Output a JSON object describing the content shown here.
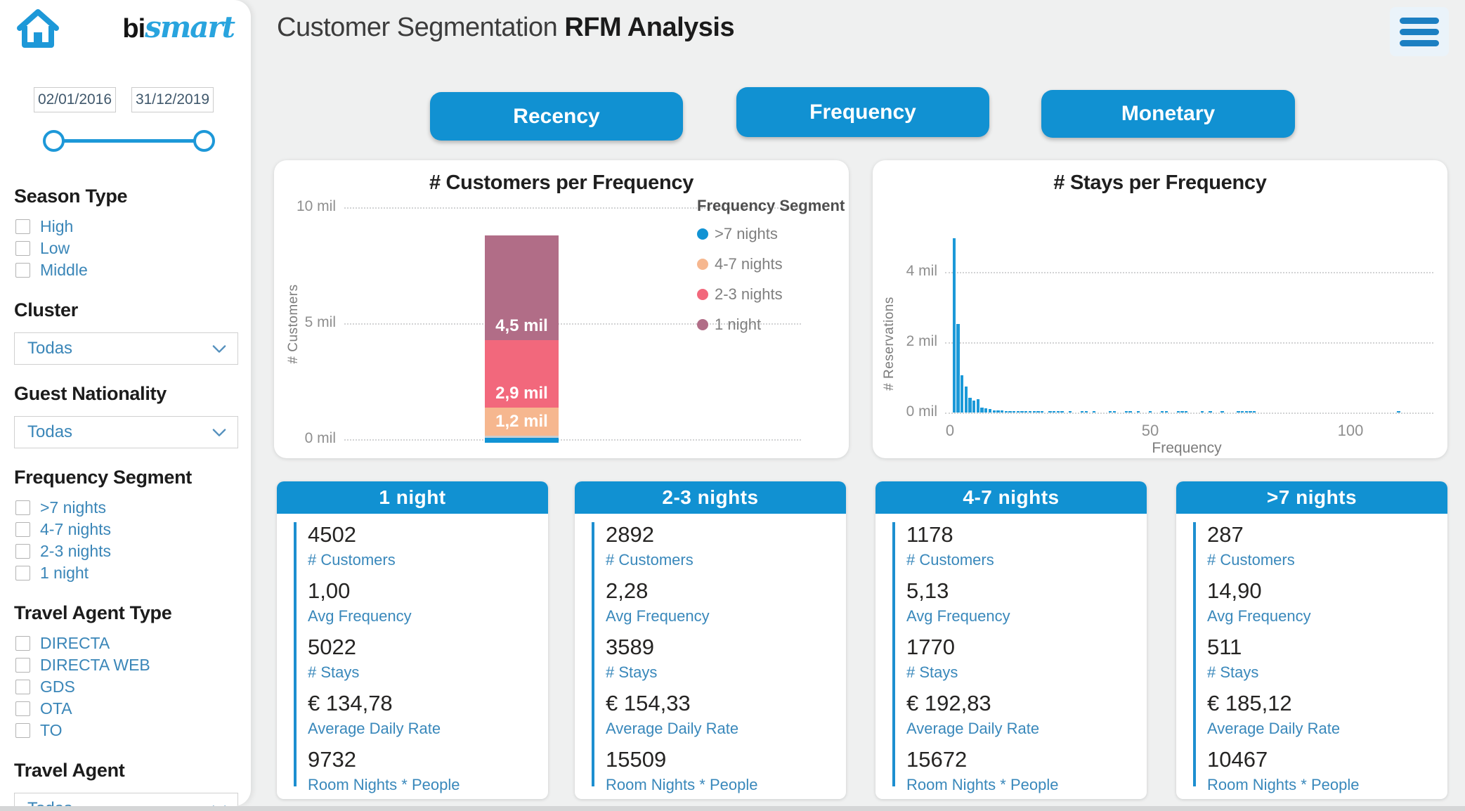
{
  "brand": {
    "bi": "bi",
    "smart": "smart"
  },
  "header": {
    "title_light": "Customer Segmentation",
    "title_bold": "RFM Analysis"
  },
  "tabs": [
    {
      "label": "Recency"
    },
    {
      "label": "Frequency"
    },
    {
      "label": "Monetary"
    }
  ],
  "filters": {
    "date_from": "02/01/2016",
    "date_to": "31/12/2019",
    "sections": [
      {
        "title": "Season Type",
        "type": "checkbox",
        "options": [
          "High",
          "Low",
          "Middle"
        ]
      },
      {
        "title": "Cluster",
        "type": "dropdown",
        "value": "Todas"
      },
      {
        "title": "Guest Nationality",
        "type": "dropdown",
        "value": "Todas"
      },
      {
        "title": "Frequency Segment",
        "type": "checkbox",
        "options": [
          ">7 nights",
          "4-7 nights",
          "2-3 nights",
          "1 night"
        ]
      },
      {
        "title": "Travel Agent Type",
        "type": "checkbox",
        "options": [
          "DIRECTA",
          "DIRECTA WEB",
          "GDS",
          "OTA",
          "TO"
        ]
      },
      {
        "title": "Travel Agent",
        "type": "dropdown",
        "value": "Todas"
      }
    ]
  },
  "chart_data": [
    {
      "type": "bar",
      "subtype": "stacked-single-column",
      "title": "# Customers per Frequency",
      "xlabel": "",
      "ylabel": "# Customers",
      "ylim": [
        0,
        10
      ],
      "yticks": [
        "0 mil",
        "5 mil",
        "10 mil"
      ],
      "grid": true,
      "legend_title": "Frequency Segment",
      "legend_position": "right",
      "series": [
        {
          "name": ">7 nights",
          "value_mil": 0.3,
          "label": "",
          "label_align": "",
          "color": "#1193d4"
        },
        {
          "name": "4-7 nights",
          "value_mil": 1.2,
          "label": "1,2 mil",
          "label_align": "center",
          "color": "#f6b78f"
        },
        {
          "name": "2-3 nights",
          "value_mil": 2.9,
          "label": "2,9 mil",
          "label_align": "bottom",
          "color": "#f2687c"
        },
        {
          "name": "1 night",
          "value_mil": 4.5,
          "label": "4,5 mil",
          "label_align": "bottom",
          "color": "#b16d87"
        }
      ]
    },
    {
      "type": "bar",
      "subtype": "histogram",
      "title": "# Stays per Frequency",
      "xlabel": "Frequency",
      "ylabel": "# Reservations",
      "ylim": [
        0,
        5.2
      ],
      "xlim": [
        0,
        118
      ],
      "yticks": [
        "0 mil",
        "2 mil",
        "4 mil"
      ],
      "xticks": [
        "0",
        "50",
        "100"
      ],
      "grid": true,
      "bar_color": "#1b99d8",
      "bars": [
        [
          1,
          4.95
        ],
        [
          2,
          2.52
        ],
        [
          3,
          1.06
        ],
        [
          4,
          0.74
        ],
        [
          5,
          0.42
        ],
        [
          6,
          0.34
        ],
        [
          7,
          0.38
        ],
        [
          8,
          0.13
        ],
        [
          9,
          0.11
        ],
        [
          10,
          0.1
        ],
        [
          11,
          0.06
        ],
        [
          12,
          0.05
        ],
        [
          13,
          0.05
        ],
        [
          14,
          0.04
        ],
        [
          15,
          0.04
        ],
        [
          16,
          0.03
        ],
        [
          17,
          0.03
        ],
        [
          18,
          0.03
        ],
        [
          19,
          0.02
        ],
        [
          20,
          0.03
        ],
        [
          21,
          0.02
        ],
        [
          22,
          0.02
        ],
        [
          23,
          0.02
        ],
        [
          25,
          0.02
        ],
        [
          26,
          0.02
        ],
        [
          27,
          0.02
        ],
        [
          28,
          0.02
        ],
        [
          30,
          0.02
        ],
        [
          33,
          0.02
        ],
        [
          34,
          0.02
        ],
        [
          36,
          0.015
        ],
        [
          40,
          0.015
        ],
        [
          41,
          0.015
        ],
        [
          44,
          0.02
        ],
        [
          45,
          0.02
        ],
        [
          47,
          0.015
        ],
        [
          50,
          0.02
        ],
        [
          53,
          0.02
        ],
        [
          54,
          0.015
        ],
        [
          57,
          0.025
        ],
        [
          58,
          0.025
        ],
        [
          59,
          0.02
        ],
        [
          63,
          0.015
        ],
        [
          65,
          0.02
        ],
        [
          68,
          0.015
        ],
        [
          72,
          0.02
        ],
        [
          73,
          0.025
        ],
        [
          74,
          0.02
        ],
        [
          75,
          0.02
        ],
        [
          76,
          0.015
        ],
        [
          112,
          0.02
        ]
      ]
    }
  ],
  "cards": [
    {
      "title": "1 night",
      "metrics": [
        {
          "value": "4502",
          "label": "# Customers"
        },
        {
          "value": "1,00",
          "label": "Avg Frequency"
        },
        {
          "value": "5022",
          "label": "# Stays"
        },
        {
          "value": "€ 134,78",
          "label": "Average Daily Rate"
        },
        {
          "value": "9732",
          "label": "Room Nights * People"
        }
      ]
    },
    {
      "title": "2-3 nights",
      "metrics": [
        {
          "value": "2892",
          "label": "# Customers"
        },
        {
          "value": "2,28",
          "label": "Avg Frequency"
        },
        {
          "value": "3589",
          "label": "# Stays"
        },
        {
          "value": "€ 154,33",
          "label": "Average Daily Rate"
        },
        {
          "value": "15509",
          "label": "Room Nights * People"
        }
      ]
    },
    {
      "title": "4-7 nights",
      "metrics": [
        {
          "value": "1178",
          "label": "# Customers"
        },
        {
          "value": "5,13",
          "label": "Avg Frequency"
        },
        {
          "value": "1770",
          "label": "# Stays"
        },
        {
          "value": "€ 192,83",
          "label": "Average Daily Rate"
        },
        {
          "value": "15672",
          "label": "Room Nights * People"
        }
      ]
    },
    {
      "title": ">7 nights",
      "metrics": [
        {
          "value": "287",
          "label": "# Customers"
        },
        {
          "value": "14,90",
          "label": "Avg Frequency"
        },
        {
          "value": "511",
          "label": "# Stays"
        },
        {
          "value": "€ 185,12",
          "label": "Average Daily Rate"
        },
        {
          "value": "10467",
          "label": "Room Nights * People"
        }
      ]
    }
  ],
  "colors": {
    "accent_blue": "#1191d2",
    "label_blue": "#3a86b8",
    "peach": "#f6b78f",
    "pink": "#f2687c",
    "mauve": "#b16d87",
    "background": "#eff0f0"
  }
}
